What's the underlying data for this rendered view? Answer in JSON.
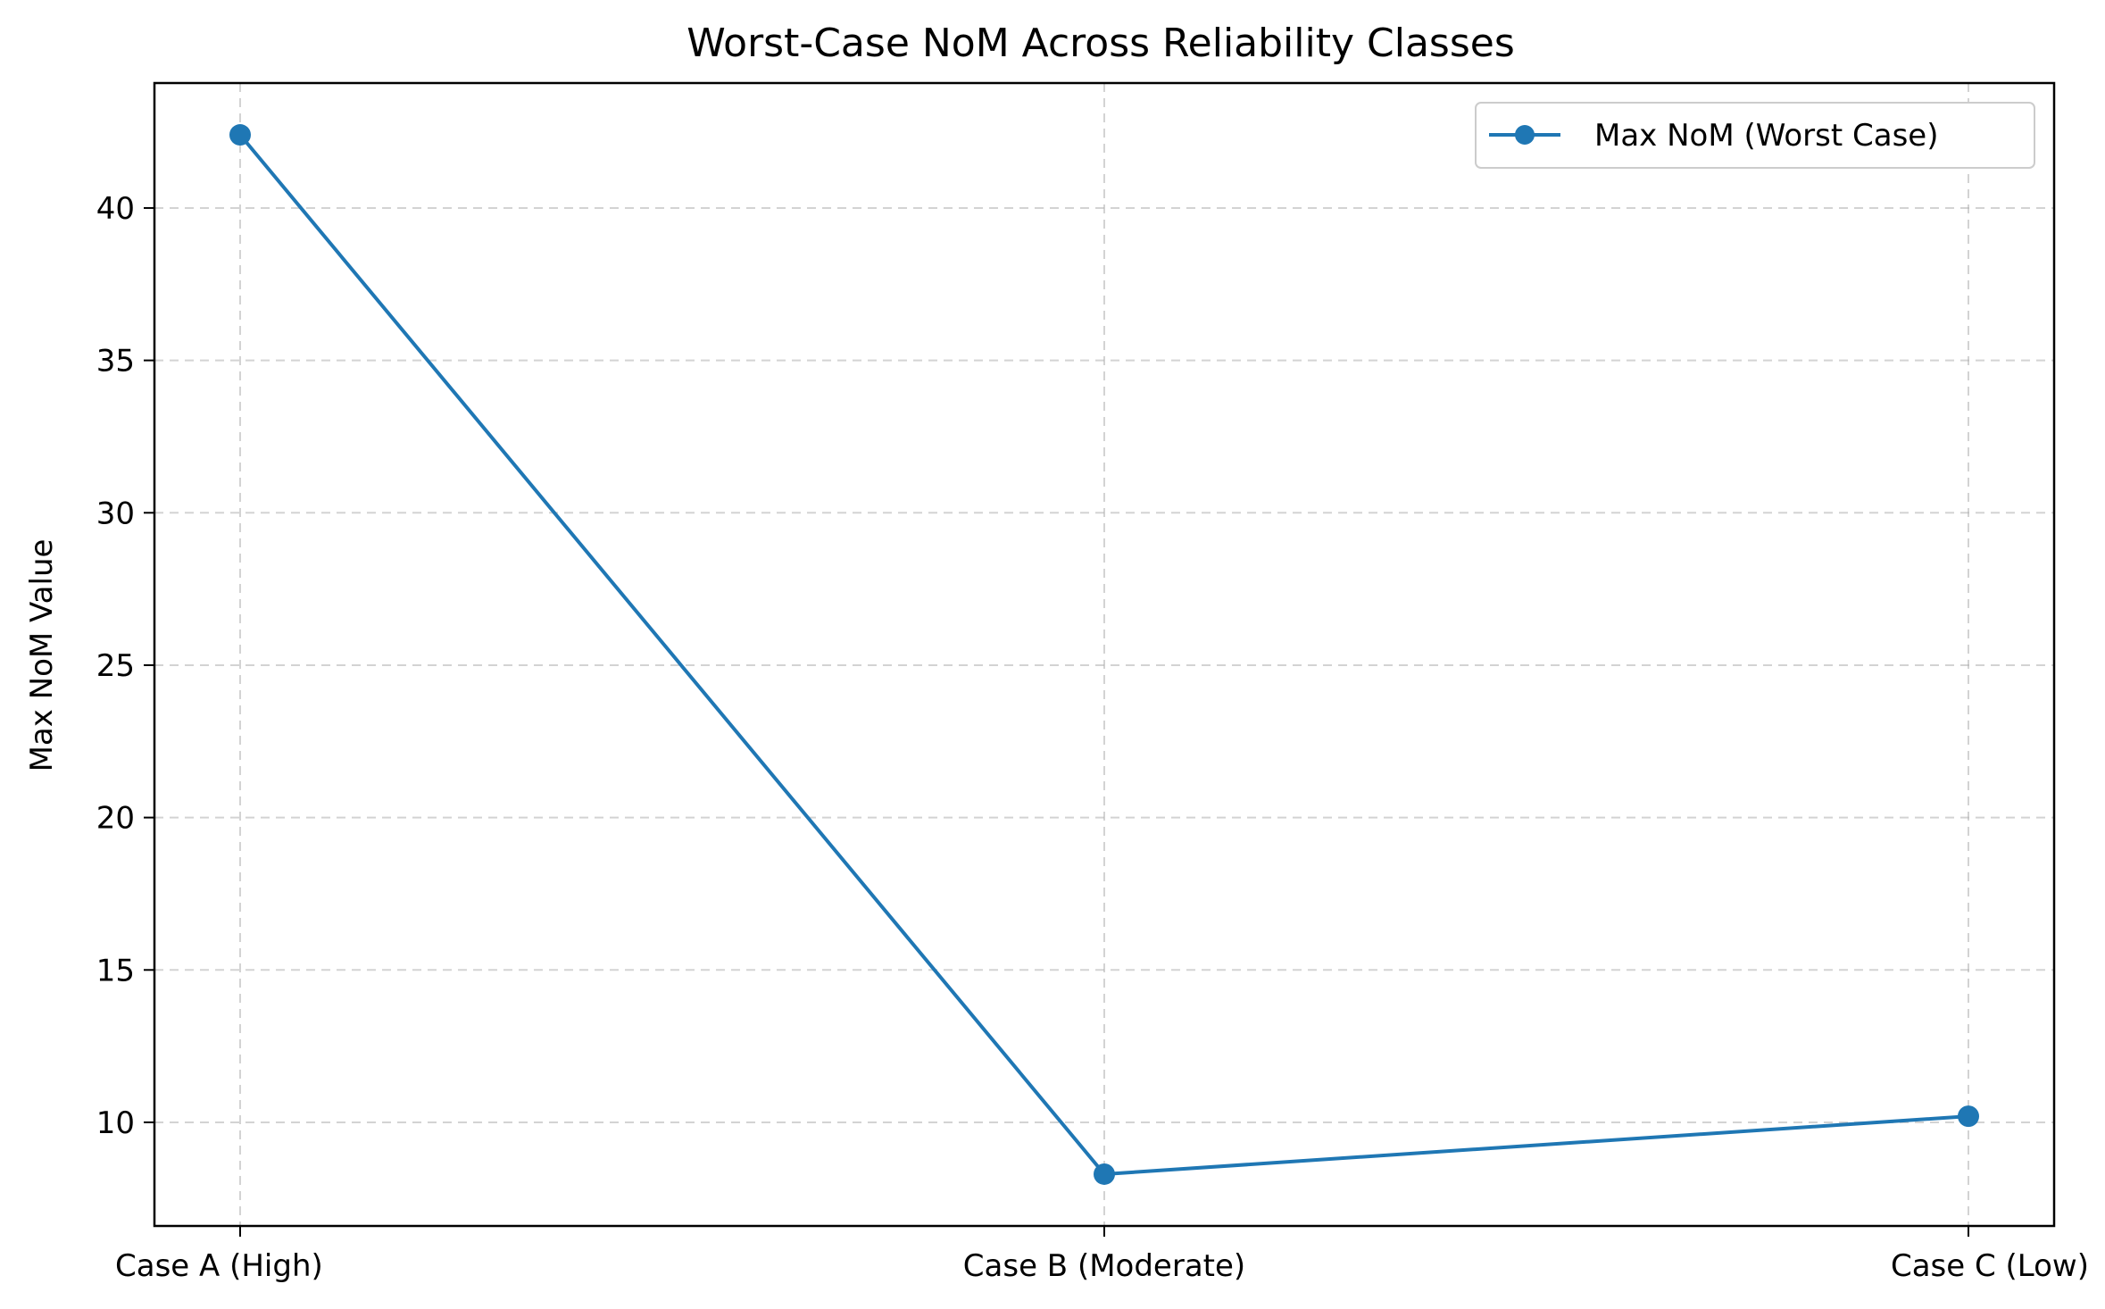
{
  "chart_data": {
    "type": "line",
    "title": "Worst-Case NoM Across Reliability Classes",
    "xlabel": "",
    "ylabel": "Max NoM Value",
    "categories": [
      "Case A (High)",
      "Case B (Moderate)",
      "Case C (Low)"
    ],
    "series": [
      {
        "name": "Max NoM (Worst Case)",
        "values": [
          42.4,
          8.3,
          10.2
        ],
        "color": "#1f77b4",
        "marker": "circle"
      }
    ],
    "ylim": [
      6.6,
      44.1
    ],
    "yticks": [
      "10",
      "15",
      "20",
      "25",
      "30",
      "35",
      "40"
    ],
    "grid": true,
    "legend_position": "top-right"
  }
}
